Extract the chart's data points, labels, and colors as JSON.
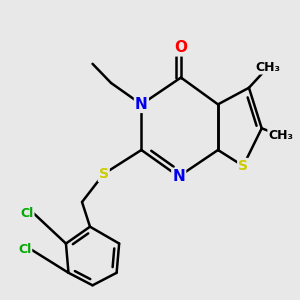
{
  "bg_color": "#e8e8e8",
  "atom_colors": {
    "O": "#ff0000",
    "N": "#0000ee",
    "S": "#cccc00",
    "Cl": "#00aa00",
    "C": "#000000"
  },
  "bond_width": 1.8,
  "font_size_atom": 11,
  "font_size_methyl": 10,
  "font_size_cl": 9
}
